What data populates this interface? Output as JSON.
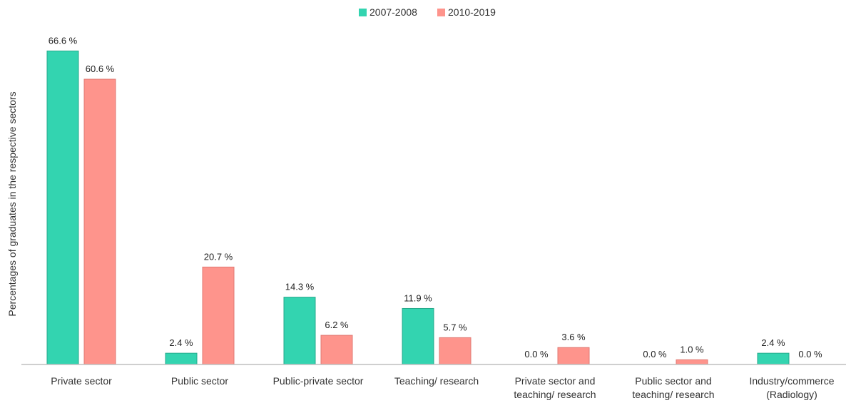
{
  "chart_data": {
    "type": "bar",
    "title": "",
    "xlabel": "",
    "ylabel": "Percentages of graduates in the respective sectors",
    "ylim": [
      0,
      70
    ],
    "grid": false,
    "legend_position": "top-center",
    "categories": [
      [
        "Private sector"
      ],
      [
        "Public sector"
      ],
      [
        "Public-private sector"
      ],
      [
        "Teaching/ research"
      ],
      [
        "Private sector and",
        "teaching/ research"
      ],
      [
        "Public sector and",
        "teaching/ research"
      ],
      [
        "Industry/commerce",
        "(Radiology)"
      ]
    ],
    "series": [
      {
        "name": "2007-2008",
        "color": "#33d4b0",
        "values": [
          66.6,
          2.4,
          14.3,
          11.9,
          0.0,
          0.0,
          2.4
        ],
        "labels": [
          "66.6 %",
          "2.4 %",
          "14.3 %",
          "11.9 %",
          "0.0 %",
          "0.0 %",
          "2.4 %"
        ]
      },
      {
        "name": "2010-2019",
        "color": "#fe948c",
        "values": [
          60.6,
          20.7,
          6.2,
          5.7,
          3.6,
          1.0,
          0.0
        ],
        "labels": [
          "60.6 %",
          "20.7 %",
          "6.2 %",
          "5.7 %",
          "3.6 %",
          "1.0 %",
          "0.0 %"
        ]
      }
    ]
  }
}
